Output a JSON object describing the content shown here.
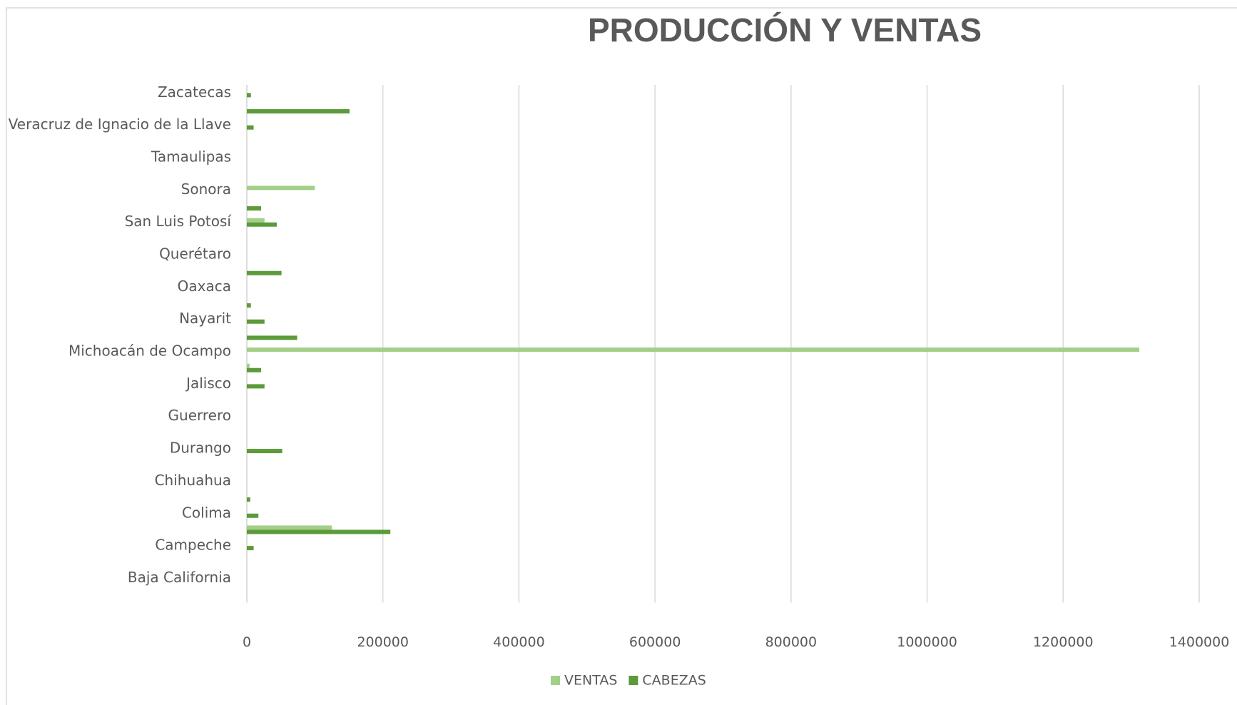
{
  "chart_data": {
    "type": "bar",
    "orientation": "horizontal",
    "title": "PRODUCCIÓN Y VENTAS",
    "categories": [
      null,
      "Baja California",
      null,
      "Campeche",
      null,
      "Colima",
      null,
      "Chihuahua",
      null,
      "Durango",
      null,
      "Guerrero",
      null,
      "Jalisco",
      null,
      "Michoacán de Ocampo",
      null,
      "Nayarit",
      null,
      "Oaxaca",
      null,
      "Querétaro",
      null,
      "San Luis Potosí",
      null,
      "Sonora",
      null,
      "Tamaulipas",
      null,
      "Veracruz de Ignacio de la Llave",
      null,
      "Zacatecas"
    ],
    "series": [
      {
        "name": "VENTAS",
        "color": "#a3cf89",
        "values": [
          0,
          0,
          0,
          0,
          125000,
          0,
          0,
          0,
          0,
          0,
          0,
          0,
          0,
          0,
          4000,
          1312000,
          0,
          0,
          0,
          0,
          0,
          0,
          0,
          26000,
          0,
          100000,
          0,
          0,
          0,
          0,
          0,
          0
        ]
      },
      {
        "name": "CABEZAS",
        "color": "#5b9b3a",
        "values": [
          0,
          0,
          0,
          10000,
          211000,
          17000,
          5000,
          0,
          0,
          52000,
          0,
          0,
          0,
          26000,
          21000,
          0,
          74000,
          26000,
          6000,
          0,
          51000,
          0,
          0,
          44000,
          21000,
          0,
          0,
          0,
          0,
          10000,
          151000,
          6000
        ]
      }
    ],
    "xlim": [
      0,
      1400000
    ],
    "xticks": [
      0,
      200000,
      400000,
      600000,
      800000,
      1000000,
      1200000,
      1400000
    ],
    "grid": true,
    "legend": "bottom"
  }
}
